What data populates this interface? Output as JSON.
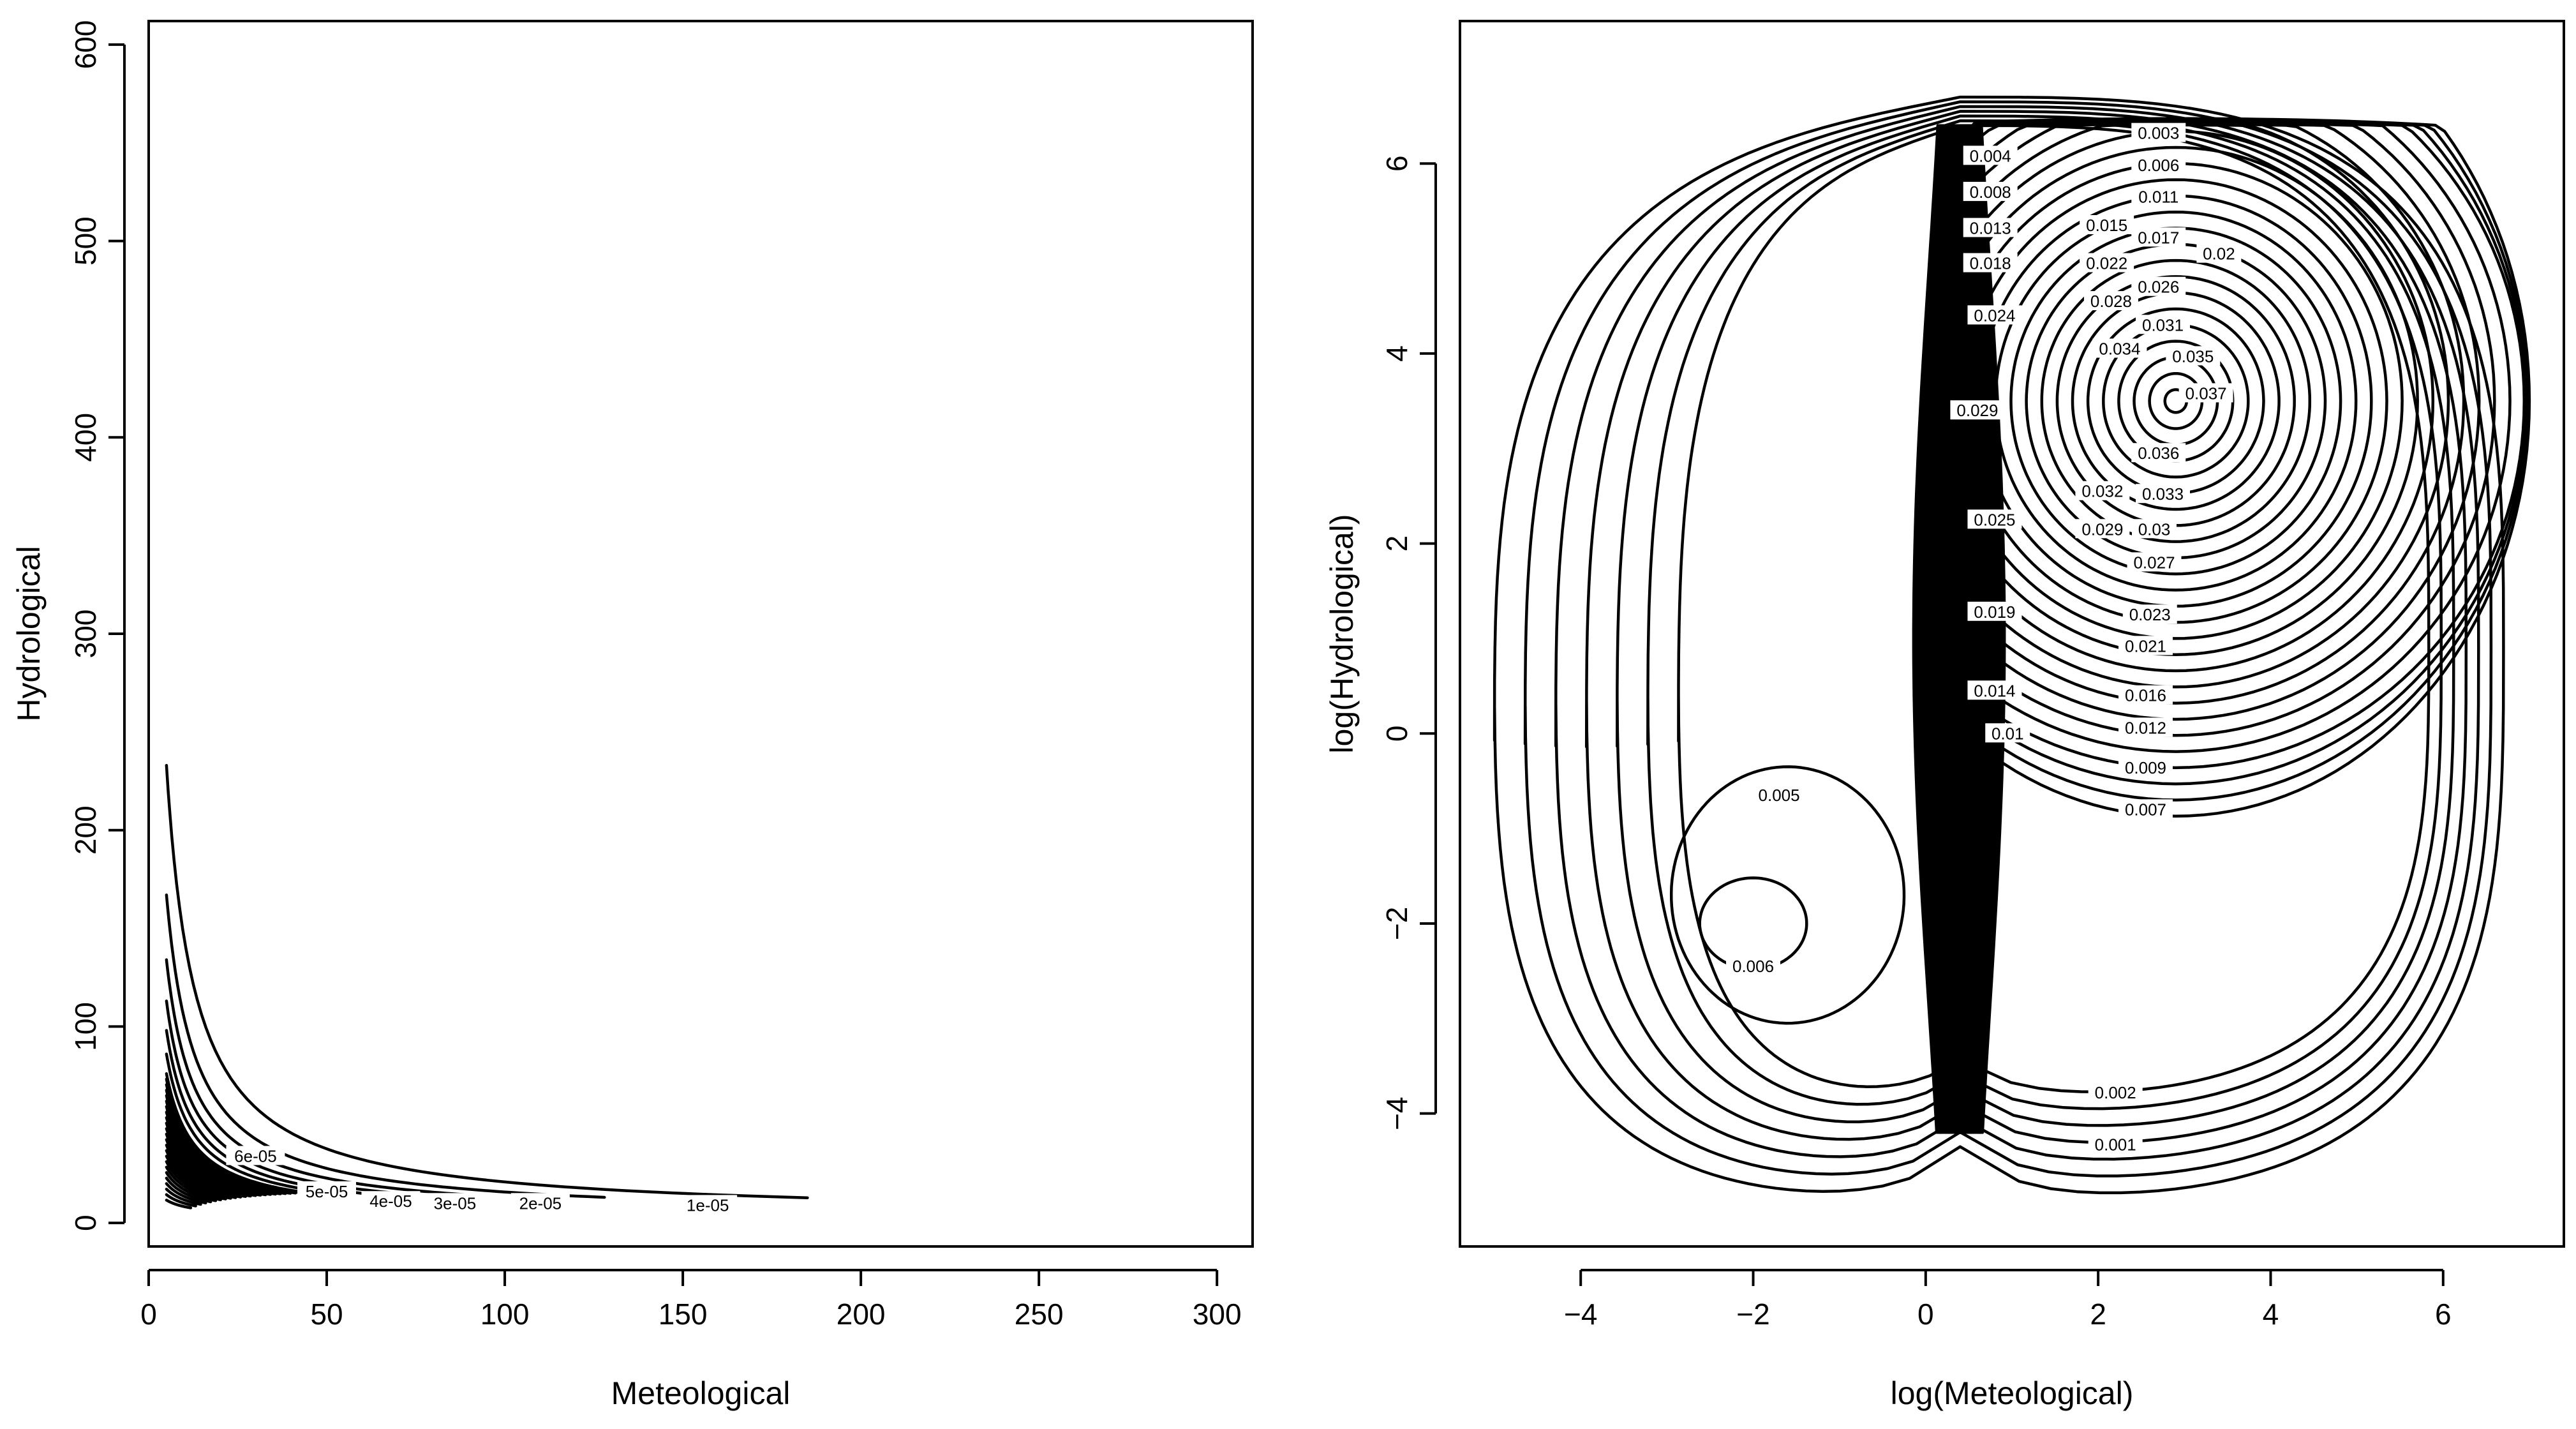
{
  "chart_data": [
    {
      "type": "contour",
      "title": "",
      "xlabel": "Meteological",
      "ylabel": "Hydrological",
      "xlim": [
        0,
        310
      ],
      "ylim": [
        -12,
        612
      ],
      "x_ticks": [
        0,
        50,
        100,
        150,
        200,
        250,
        300
      ],
      "y_ticks": [
        0,
        100,
        200,
        300,
        400,
        500,
        600
      ],
      "x_tick_labels": [
        "0",
        "50",
        "100",
        "150",
        "200",
        "250",
        "300"
      ],
      "y_tick_labels": [
        "0",
        "100",
        "200",
        "300",
        "400",
        "500",
        "600"
      ],
      "grid": false,
      "levels": [
        {
          "level": "1e-05",
          "x_end": 185,
          "x_start": 5
        },
        {
          "level": "2e-05",
          "x_end": 128,
          "x_start": 5
        },
        {
          "level": "3e-05",
          "x_end": 90,
          "x_start": 5
        },
        {
          "level": "4e-05",
          "x_end": 74,
          "x_start": 5
        },
        {
          "level": "5e-05",
          "x_end": 60,
          "x_start": 5
        },
        {
          "level": "6e-05",
          "x_end": 45,
          "x_start": 5
        }
      ]
    },
    {
      "type": "contour",
      "title": "",
      "xlabel": "log(Meteological)",
      "ylabel": "log(Hydrological)",
      "xlim": [
        -5.4,
        7.4
      ],
      "ylim": [
        -5.4,
        7.5
      ],
      "x_ticks": [
        -4,
        -2,
        0,
        2,
        4,
        6
      ],
      "y_ticks": [
        -4,
        -2,
        0,
        2,
        4,
        6
      ],
      "x_tick_labels": [
        "−4",
        "−2",
        "0",
        "2",
        "4",
        "6"
      ],
      "y_tick_labels": [
        "−4",
        "−2",
        "0",
        "2",
        "4",
        "6"
      ],
      "grid": false,
      "peak": {
        "x": 2.9,
        "y": 3.5,
        "level": "0.037"
      },
      "secondary_peak": {
        "x": -2.0,
        "y": -2.0,
        "level": "0.006"
      },
      "contour_labels": [
        {
          "text": "0.001",
          "x": 2.2,
          "y": -4.33
        },
        {
          "text": "0.002",
          "x": 2.2,
          "y": -3.78
        },
        {
          "text": "0.003",
          "x": 2.7,
          "y": 6.32
        },
        {
          "text": "0.004",
          "x": 0.75,
          "y": 6.08
        },
        {
          "text": "0.005",
          "x": -1.7,
          "y": -0.65
        },
        {
          "text": "0.006",
          "x": -2.0,
          "y": -2.45
        },
        {
          "text": "0.006",
          "x": 2.7,
          "y": 5.98
        },
        {
          "text": "0.007",
          "x": 2.55,
          "y": -0.8
        },
        {
          "text": "0.008",
          "x": 0.75,
          "y": 5.7
        },
        {
          "text": "0.009",
          "x": 2.55,
          "y": -0.36
        },
        {
          "text": "0.01",
          "x": 0.95,
          "y": 0.0
        },
        {
          "text": "0.011",
          "x": 2.7,
          "y": 5.65
        },
        {
          "text": "0.012",
          "x": 2.55,
          "y": 0.06
        },
        {
          "text": "0.013",
          "x": 0.75,
          "y": 5.32
        },
        {
          "text": "0.014",
          "x": 0.8,
          "y": 0.45
        },
        {
          "text": "0.015",
          "x": 2.1,
          "y": 5.35
        },
        {
          "text": "0.016",
          "x": 2.55,
          "y": 0.4
        },
        {
          "text": "0.017",
          "x": 2.7,
          "y": 5.22
        },
        {
          "text": "0.018",
          "x": 0.75,
          "y": 4.95
        },
        {
          "text": "0.019",
          "x": 0.8,
          "y": 1.28
        },
        {
          "text": "0.02",
          "x": 3.4,
          "y": 5.05
        },
        {
          "text": "0.021",
          "x": 2.55,
          "y": 0.92
        },
        {
          "text": "0.022",
          "x": 2.1,
          "y": 4.95
        },
        {
          "text": "0.023",
          "x": 2.6,
          "y": 1.25
        },
        {
          "text": "0.024",
          "x": 0.8,
          "y": 4.4
        },
        {
          "text": "0.025",
          "x": 0.8,
          "y": 2.25
        },
        {
          "text": "0.026",
          "x": 2.7,
          "y": 4.7
        },
        {
          "text": "0.027",
          "x": 2.65,
          "y": 1.8
        },
        {
          "text": "0.028",
          "x": 2.15,
          "y": 4.55
        },
        {
          "text": "0.029",
          "x": 0.6,
          "y": 3.4
        },
        {
          "text": "0.029",
          "x": 2.05,
          "y": 2.15
        },
        {
          "text": "0.03",
          "x": 2.65,
          "y": 2.15
        },
        {
          "text": "0.031",
          "x": 2.75,
          "y": 4.3
        },
        {
          "text": "0.032",
          "x": 2.05,
          "y": 2.55
        },
        {
          "text": "0.033",
          "x": 2.75,
          "y": 2.52
        },
        {
          "text": "0.034",
          "x": 2.25,
          "y": 4.05
        },
        {
          "text": "0.035",
          "x": 3.1,
          "y": 3.97
        },
        {
          "text": "0.036",
          "x": 2.7,
          "y": 2.95
        },
        {
          "text": "0.037",
          "x": 3.25,
          "y": 3.58
        }
      ]
    }
  ]
}
